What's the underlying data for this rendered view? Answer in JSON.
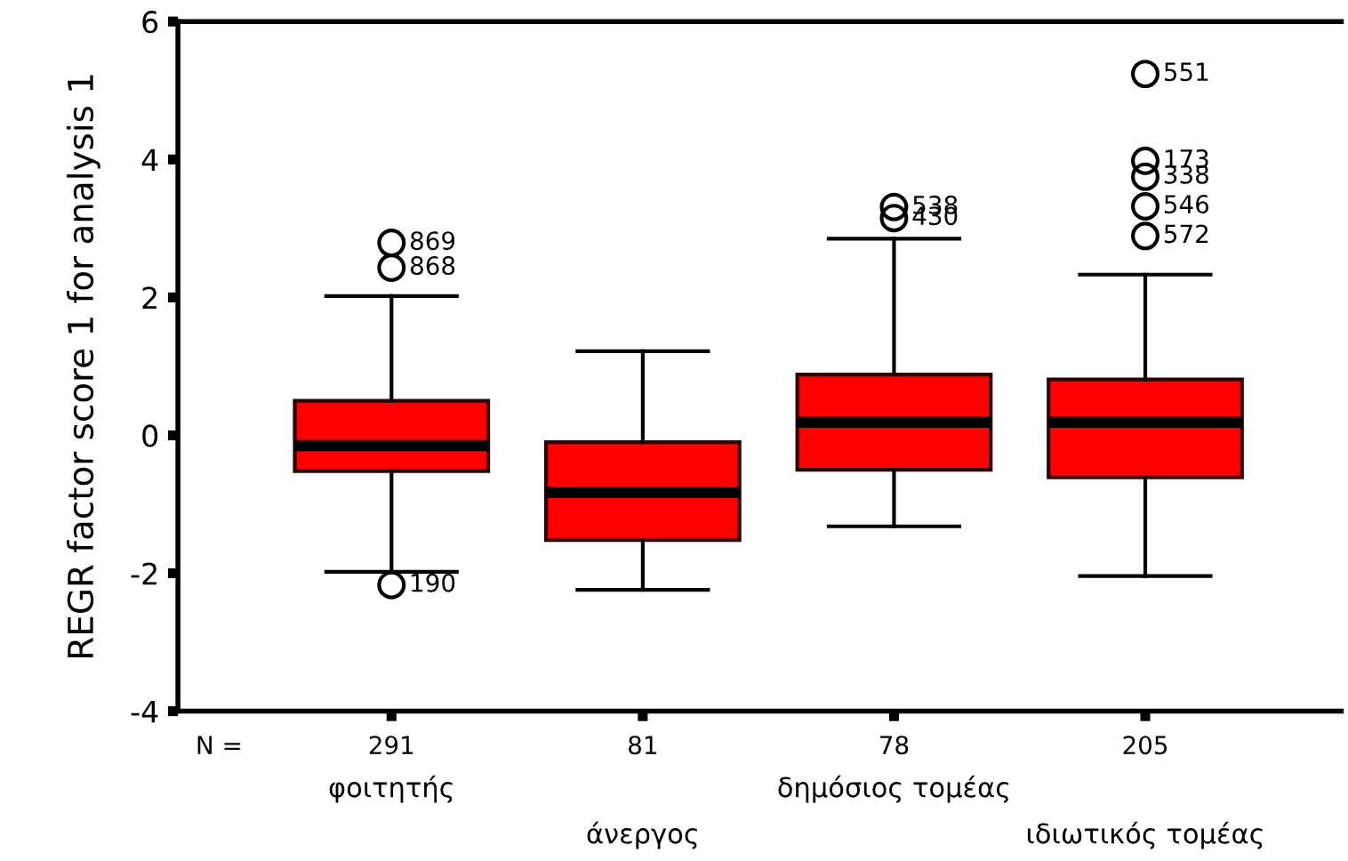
{
  "chart_data": {
    "type": "box",
    "ylabel": "REGR factor score 1 for analysis 1",
    "categories": [
      "φοιτητής",
      "άνεργος",
      "δημόσιος τομέας",
      "ιδιωτικός τομέας"
    ],
    "boxes": [
      {
        "low": -1.98,
        "q1": -0.52,
        "median": -0.15,
        "q3": 0.5,
        "high": 2.02,
        "outliers": [
          2.79,
          2.43,
          -2.17
        ]
      },
      {
        "low": -2.24,
        "q1": -1.52,
        "median": -0.83,
        "q3": -0.1,
        "high": 1.22
      },
      {
        "low": -1.32,
        "q1": -0.5,
        "median": 0.19,
        "q3": 0.88,
        "high": 2.85,
        "outliers": [
          3.31,
          3.15
        ]
      },
      {
        "low": -2.04,
        "q1": -0.61,
        "median": 0.19,
        "q3": 0.81,
        "high": 2.33,
        "outliers": [
          5.24,
          3.98,
          3.75,
          3.32,
          2.89
        ]
      }
    ],
    "color": "#ff0000",
    "ylim": [
      -4,
      6
    ],
    "yticks": [
      -4,
      -2,
      0,
      2,
      4,
      6
    ],
    "annotations": [
      "N =",
      "291",
      "81",
      "78",
      "205",
      "869",
      "868",
      "190",
      "538",
      "430",
      "551",
      "173",
      "338",
      "546",
      "572"
    ]
  }
}
